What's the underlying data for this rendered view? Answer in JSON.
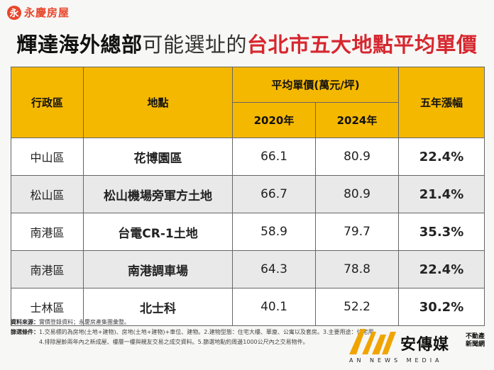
{
  "logo": {
    "mark": "永",
    "name": "永慶房屋"
  },
  "title": {
    "part1": "輝達海外總部",
    "part2": "可能選址的",
    "part3": "台北市五大地點平均單價"
  },
  "table": {
    "headers": {
      "district": "行政區",
      "site": "地點",
      "avg_price": "平均單價(萬元/坪)",
      "year_a": "2020年",
      "year_b": "2024年",
      "growth": "五年漲幅"
    },
    "rows": [
      {
        "district": "中山區",
        "site": "花博園區",
        "price_2020": "66.1",
        "price_2024": "80.9",
        "growth": "22.4%"
      },
      {
        "district": "松山區",
        "site": "松山機場旁軍方土地",
        "price_2020": "66.7",
        "price_2024": "80.9",
        "growth": "21.4%"
      },
      {
        "district": "南港區",
        "site": "台電CR-1土地",
        "price_2020": "58.9",
        "price_2024": "79.7",
        "growth": "35.3%"
      },
      {
        "district": "南港區",
        "site": "南港調車場",
        "price_2020": "64.3",
        "price_2024": "78.8",
        "growth": "22.4%"
      },
      {
        "district": "士林區",
        "site": "北士科",
        "price_2020": "40.1",
        "price_2024": "52.2",
        "growth": "30.2%"
      }
    ]
  },
  "notes": {
    "source_label": "資料來源：",
    "source_text": "實價登錄資料；永慶房產集團彙整。",
    "filter_label": "篩選條件：",
    "filter_line1": "1.交易標的為房地(土地+建物)、房地(土地+建物)+車位、建物。2.建物型態：住宅大樓、華廈、公寓以及套房。3.主要用途：住宅用",
    "filter_line2": "4.排除屋齡兩年內之新成屋、樓層一樓與親友交易之成交資料。5.篩選地點約周邊1000公尺內之交易物件。"
  },
  "brand": {
    "name": "安傳媒",
    "tag_line1": "不動產",
    "tag_line2": "新聞網",
    "english": "AN NEWS MEDIA"
  },
  "colors": {
    "header_yellow": "#f5b800",
    "title_red": "#d6272f",
    "logo_red": "#e8462b",
    "brand_orange": "#f0a400"
  }
}
